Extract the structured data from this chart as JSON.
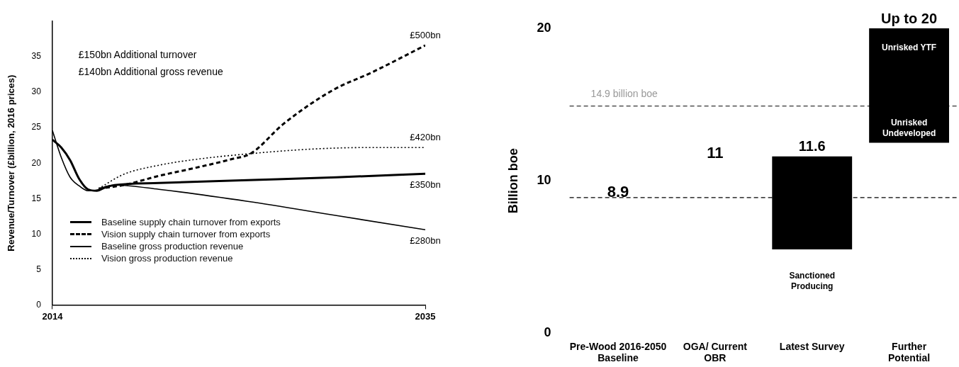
{
  "chart_data": [
    {
      "type": "line",
      "ylabel": "Revenue/Turnover (£billion, 2016 prices)",
      "xlim": [
        2014,
        2035
      ],
      "xticks": [
        2014,
        2035
      ],
      "ylim": [
        0,
        40
      ],
      "yticks": [
        0,
        5,
        10,
        15,
        20,
        25,
        30,
        35
      ],
      "grid": false,
      "legend": "bottom left",
      "marker": "none",
      "series": [
        {
          "name": "Baseline supply chain turnover from exports",
          "color": "#000000",
          "line_style": "solid",
          "x": [
            2014,
            2014.5,
            2015,
            2015.5,
            2016,
            2016.5,
            2017,
            2017.5,
            2020,
            2025,
            2030,
            2035
          ],
          "values": [
            23.3,
            22.2,
            20.4,
            17.8,
            16.3,
            16.1,
            16.6,
            16.9,
            17.2,
            17.6,
            18.0,
            18.5
          ]
        },
        {
          "name": "Vision supply chain turnover from exports",
          "color": "#000000",
          "line_style": "dashed",
          "x": [
            2016.6,
            2018,
            2020,
            2022,
            2024,
            2025.2,
            2027,
            2029.8,
            2032,
            2035
          ],
          "values": [
            16.4,
            16.9,
            18.2,
            19.3,
            20.5,
            21.4,
            25.5,
            30.3,
            32.8,
            36.6
          ]
        },
        {
          "name": "Baseline gross production revenue",
          "color": "#000000",
          "line_style": "solid",
          "x": [
            2014,
            2014.5,
            2015,
            2015.5,
            2016,
            2016.5,
            2017,
            2017.5,
            2020,
            2025,
            2030,
            2035
          ],
          "values": [
            24.6,
            20.8,
            18.0,
            16.8,
            16.1,
            16.2,
            16.7,
            16.9,
            16.3,
            14.6,
            12.6,
            10.6
          ]
        },
        {
          "name": "Vision gross production revenue",
          "color": "#000000",
          "line_style": "dotted",
          "x": [
            2016.6,
            2018,
            2020,
            2022,
            2025,
            2028.8,
            2032,
            2035
          ],
          "values": [
            16.4,
            18.4,
            19.7,
            20.5,
            21.3,
            22.0,
            22.2,
            22.2
          ]
        }
      ],
      "annotations": [
        "£150bn Additional turnover",
        "£140bn Additional gross revenue",
        {
          "text": "£500bn",
          "x": 2035,
          "y": 36.6
        },
        {
          "text": "£420bn",
          "x": 2035,
          "y": 22.2
        },
        {
          "text": "£350bn",
          "x": 2035,
          "y": 18.5
        },
        {
          "text": "£280bn",
          "x": 2035,
          "y": 10.6
        }
      ]
    },
    {
      "type": "bar",
      "ylabel": "Billion boe",
      "categories": [
        "Pre-Wood 2016-2050 Baseline",
        "OGA/ Current OBR",
        "Latest Survey",
        "Further Potential"
      ],
      "ylim": [
        0,
        20
      ],
      "yticks": [
        0,
        10,
        20
      ],
      "grid": false,
      "series": [
        {
          "color": "#000000",
          "base": [
            null,
            null,
            5.5,
            12.5
          ],
          "values": [
            null,
            null,
            6.1,
            7.5
          ],
          "value_labels": [
            null,
            null,
            "11.6",
            "Up to 20"
          ]
        }
      ],
      "ref_lines": [
        {
          "axis": "y",
          "value": 8.9,
          "label": "8.9",
          "color": "#000000",
          "line_style": "dashed"
        },
        {
          "axis": "y",
          "value": 14.9,
          "label": "14.9 billion boe",
          "color": "#000000",
          "line_style": "dashed"
        }
      ],
      "annotations": [
        "11",
        "Sanctioned Producing",
        {
          "text": "Unrisked YTF",
          "x": "Further Potential",
          "y": 20
        },
        {
          "text": "Unrisked Undeveloped",
          "x": "Further Potential",
          "y": 12.5
        }
      ]
    }
  ]
}
